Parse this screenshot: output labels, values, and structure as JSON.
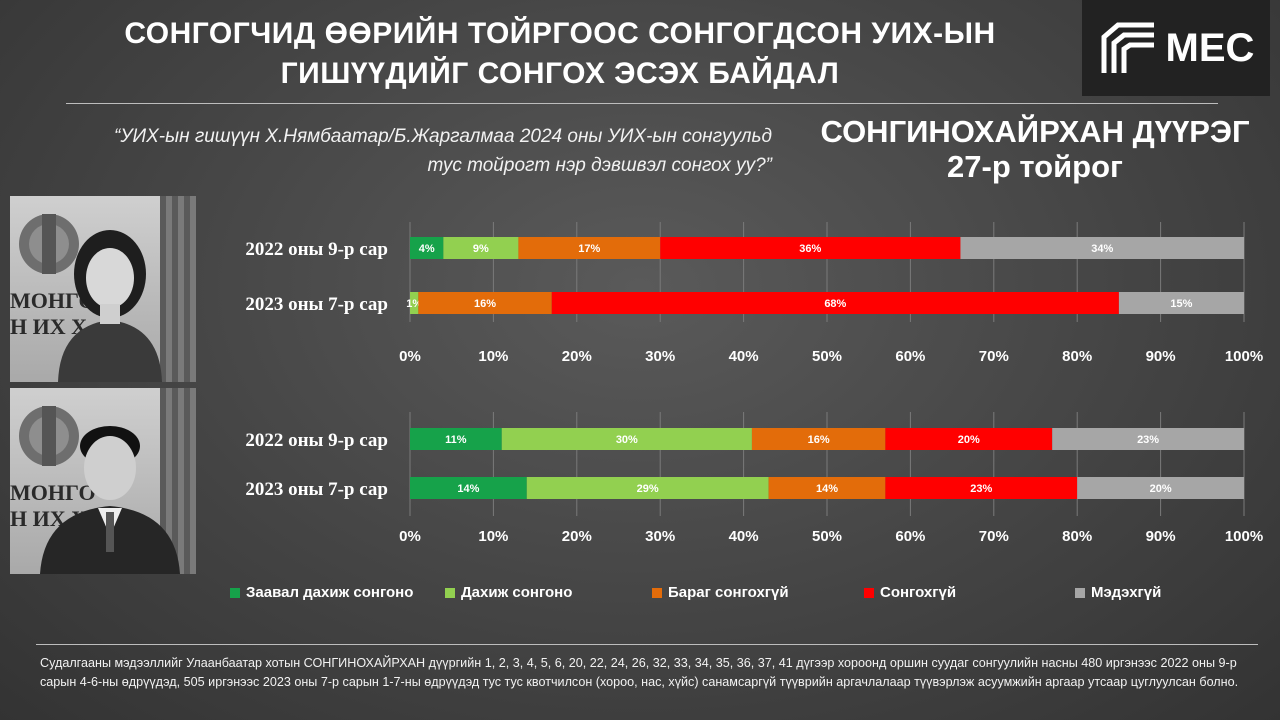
{
  "header": {
    "title_line1": "СОНГОГЧИД ӨӨРИЙН ТОЙРГООС СОНГОГДСОН УИХ-ЫН",
    "title_line2": "ГИШҮҮДИЙГ СОНГОХ ЭСЭХ БАЙДАЛ",
    "logo_text": "MEC"
  },
  "question": {
    "line1": "“УИХ-ын гишүүн Х.Нямбаатар/Б.Жаргалмаа 2024 оны УИХ-ын сонгуульд",
    "line2": "тус тойрогт нэр дэвшвэл сонгох уу?”"
  },
  "district": {
    "line1": "СОНГИНОХАЙРХАН ДҮҮРЭГ",
    "line2": "27-р тойрог"
  },
  "photos": {
    "caption_top": "МОНГО",
    "caption_bottom": "Н ИХ Х"
  },
  "colors": {
    "must_reelect": "#16a24a",
    "reelect": "#92d050",
    "hardly_elect": "#e36c0a",
    "not_elect": "#ff0000",
    "dont_know": "#a6a6a6"
  },
  "chart_data": [
    {
      "type": "bar",
      "orientation": "horizontal-stacked",
      "subject": "Б.Жаргалмаа",
      "categories": [
        "2022 оны 9-р сар",
        "2023 оны 7-р сар"
      ],
      "series": [
        {
          "name": "Заавал дахиж сонгоно",
          "values": [
            4,
            0
          ],
          "labels": [
            "4%",
            ""
          ]
        },
        {
          "name": "Дахиж сонгоно",
          "values": [
            9,
            1
          ],
          "labels": [
            "9%",
            "1%"
          ]
        },
        {
          "name": "Бараг сонгохгүй",
          "values": [
            17,
            16
          ],
          "labels": [
            "17%",
            "16%"
          ]
        },
        {
          "name": "Сонгохгүй",
          "values": [
            36,
            68
          ],
          "labels": [
            "36%",
            "68%"
          ]
        },
        {
          "name": "Мэдэхгүй",
          "values": [
            34,
            15
          ],
          "labels": [
            "34%",
            "15%"
          ]
        }
      ],
      "xlim": [
        0,
        100
      ],
      "xticks": [
        "0%",
        "10%",
        "20%",
        "30%",
        "40%",
        "50%",
        "60%",
        "70%",
        "80%",
        "90%",
        "100%"
      ]
    },
    {
      "type": "bar",
      "orientation": "horizontal-stacked",
      "subject": "Х.Нямбаатар",
      "categories": [
        "2022 оны 9-р сар",
        "2023 оны 7-р сар"
      ],
      "series": [
        {
          "name": "Заавал дахиж сонгоно",
          "values": [
            11,
            14
          ],
          "labels": [
            "11%",
            "14%"
          ]
        },
        {
          "name": "Дахиж сонгоно",
          "values": [
            30,
            29
          ],
          "labels": [
            "30%",
            "29%"
          ]
        },
        {
          "name": "Бараг сонгохгүй",
          "values": [
            16,
            14
          ],
          "labels": [
            "16%",
            "14%"
          ]
        },
        {
          "name": "Сонгохгүй",
          "values": [
            20,
            23
          ],
          "labels": [
            "20%",
            "23%"
          ]
        },
        {
          "name": "Мэдэхгүй",
          "values": [
            23,
            20
          ],
          "labels": [
            "23%",
            "20%"
          ]
        }
      ],
      "xlim": [
        0,
        100
      ],
      "xticks": [
        "0%",
        "10%",
        "20%",
        "30%",
        "40%",
        "50%",
        "60%",
        "70%",
        "80%",
        "90%",
        "100%"
      ]
    }
  ],
  "legend": [
    {
      "label": "Заавал дахиж сонгоно",
      "color": "#16a24a"
    },
    {
      "label": "Дахиж сонгоно",
      "color": "#92d050"
    },
    {
      "label": "Бараг сонгохгүй",
      "color": "#e36c0a"
    },
    {
      "label": "Сонгохгүй",
      "color": "#ff0000"
    },
    {
      "label": "Мэдэхгүй",
      "color": "#a6a6a6"
    }
  ],
  "footnote": "Судалгааны мэдээллийг Улаанбаатар хотын СОНГИНОХАЙРХАН дүүргийн 1, 2, 3, 4, 5, 6, 20, 22, 24, 26, 32, 33, 34, 35, 36, 37, 41 дүгээр хороонд оршин суудаг сонгуулийн насны 480 иргэнээс 2022 оны 9-р сарын 4-6-ны өдрүүдэд, 505 иргэнээс 2023 оны 7-р сарын 1-7-ны өдрүүдэд тус тус квотчилсон (хороо, нас, хүйс) санамсаргүй түүврийн аргачлалаар түүвэрлэж асуумжийн аргаар утсаар цуглуулсан болно."
}
